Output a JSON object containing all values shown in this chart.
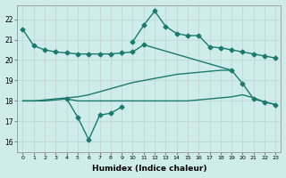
{
  "xlabel": "Humidex (Indice chaleur)",
  "bg_color": "#ceecea",
  "line_color": "#1a7a6e",
  "grid_color": "#c0d8d5",
  "ylim": [
    15.5,
    22.7
  ],
  "yticks": [
    16,
    17,
    18,
    19,
    20,
    21,
    22
  ],
  "line1_x": [
    0,
    1,
    2,
    3,
    4,
    5,
    6,
    7,
    8,
    9,
    10,
    11,
    19,
    20,
    21,
    22,
    23
  ],
  "line1_y": [
    21.5,
    20.7,
    20.5,
    20.4,
    20.35,
    20.3,
    20.3,
    20.3,
    20.3,
    20.35,
    20.4,
    20.75,
    19.5,
    18.85,
    18.1,
    17.95,
    17.82
  ],
  "line2_x": [
    10,
    11,
    12,
    13,
    14,
    15,
    16,
    17,
    18,
    19,
    20,
    21,
    22,
    23
  ],
  "line2_y": [
    20.9,
    21.7,
    22.4,
    21.65,
    21.3,
    21.2,
    21.2,
    20.65,
    20.6,
    20.5,
    20.4,
    20.3,
    20.2,
    20.1
  ],
  "line3_x": [
    0,
    1,
    2,
    3,
    4,
    5,
    6,
    7,
    8,
    9,
    10,
    11,
    12,
    13,
    14,
    15,
    16,
    17,
    18,
    19,
    20,
    21,
    22,
    23
  ],
  "line3_y": [
    18.0,
    18.0,
    18.0,
    18.05,
    18.1,
    18.0,
    18.0,
    18.0,
    18.0,
    18.0,
    18.0,
    18.0,
    18.0,
    18.0,
    18.0,
    18.0,
    18.05,
    18.1,
    18.15,
    18.2,
    18.3,
    18.15,
    17.95,
    17.82
  ],
  "line4_x": [
    4,
    5,
    6,
    7,
    8,
    9
  ],
  "line4_y": [
    18.1,
    17.2,
    16.1,
    17.3,
    17.4,
    17.7
  ],
  "line5_x": [
    0,
    1,
    2,
    3,
    4,
    5,
    6,
    7,
    8,
    9,
    10,
    11,
    12,
    13,
    14,
    15,
    16,
    17,
    18,
    19
  ],
  "line5_y": [
    18.0,
    18.0,
    18.05,
    18.1,
    18.15,
    18.2,
    18.3,
    18.45,
    18.6,
    18.75,
    18.9,
    19.0,
    19.1,
    19.2,
    19.3,
    19.35,
    19.4,
    19.45,
    19.5,
    19.5
  ]
}
